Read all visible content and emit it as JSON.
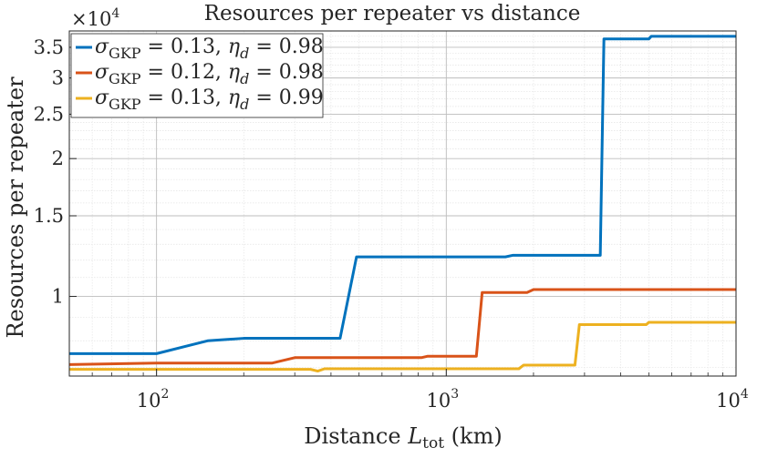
{
  "chart_data": {
    "type": "line",
    "title": "Resources per repeater vs distance",
    "xlabel": {
      "prefix": "Distance ",
      "var": "L",
      "sub": "tot",
      "suffix": " (km)"
    },
    "ylabel": "Resources per repeater",
    "y_multiplier": {
      "base": "×10",
      "exp": "4"
    },
    "xscale": "log",
    "yscale": "log",
    "xlim": [
      50,
      10000
    ],
    "ylim": [
      0.67,
      3.8
    ],
    "x_ticks": [
      {
        "value": 100,
        "base": "10",
        "exp": "2"
      },
      {
        "value": 1000,
        "base": "10",
        "exp": "3"
      },
      {
        "value": 10000,
        "base": "10",
        "exp": "4"
      }
    ],
    "y_ticks": [
      {
        "value": 1,
        "label": "1"
      },
      {
        "value": 1.5,
        "label": "1.5"
      },
      {
        "value": 2,
        "label": "2"
      },
      {
        "value": 2.5,
        "label": "2.5"
      },
      {
        "value": 3,
        "label": "3"
      },
      {
        "value": 3.5,
        "label": "3.5"
      }
    ],
    "grid": true,
    "legend_position": "top-left",
    "series": [
      {
        "name": "σGKP = 0.13, ηd = 0.98",
        "legend": {
          "sigma_sub": "GKP",
          "sigma_val": "0.13",
          "eta_sub": "d",
          "eta_val": "0.98"
        },
        "color": "#0072bd",
        "points": [
          [
            50,
            0.75
          ],
          [
            100,
            0.75
          ],
          [
            150,
            0.8
          ],
          [
            200,
            0.81
          ],
          [
            430,
            0.81
          ],
          [
            490,
            1.22
          ],
          [
            1600,
            1.22
          ],
          [
            1700,
            1.23
          ],
          [
            3400,
            1.23
          ],
          [
            3500,
            3.65
          ],
          [
            5000,
            3.65
          ],
          [
            5100,
            3.7
          ],
          [
            10000,
            3.7
          ]
        ]
      },
      {
        "name": "σGKP = 0.12, ηd = 0.98",
        "legend": {
          "sigma_sub": "GKP",
          "sigma_val": "0.12",
          "eta_sub": "d",
          "eta_val": "0.98"
        },
        "color": "#d95319",
        "points": [
          [
            50,
            0.71
          ],
          [
            100,
            0.715
          ],
          [
            250,
            0.715
          ],
          [
            300,
            0.735
          ],
          [
            820,
            0.735
          ],
          [
            860,
            0.74
          ],
          [
            1270,
            0.74
          ],
          [
            1330,
            1.02
          ],
          [
            1900,
            1.02
          ],
          [
            2000,
            1.035
          ],
          [
            10000,
            1.035
          ]
        ]
      },
      {
        "name": "σGKP = 0.13, ηd = 0.99",
        "legend": {
          "sigma_sub": "GKP",
          "sigma_val": "0.13",
          "eta_sub": "d",
          "eta_val": "0.99"
        },
        "color": "#edb120",
        "points": [
          [
            50,
            0.693
          ],
          [
            340,
            0.693
          ],
          [
            360,
            0.687
          ],
          [
            380,
            0.695
          ],
          [
            1780,
            0.695
          ],
          [
            1850,
            0.708
          ],
          [
            2780,
            0.708
          ],
          [
            2880,
            0.868
          ],
          [
            4900,
            0.868
          ],
          [
            5000,
            0.878
          ],
          [
            10000,
            0.878
          ]
        ]
      }
    ]
  }
}
